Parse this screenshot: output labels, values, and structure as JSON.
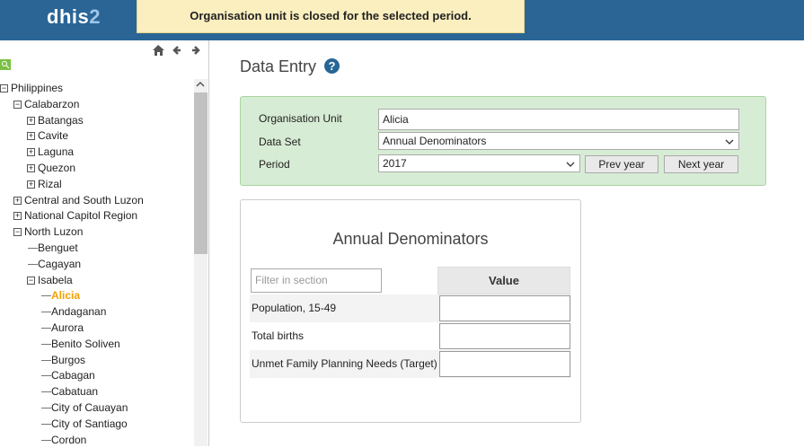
{
  "header": {
    "logo": "dhis",
    "logo_suffix": "2",
    "notification": "Organisation unit is closed for the selected period."
  },
  "tree": [
    {
      "label": "Philippines",
      "children": [
        {
          "label": "Calabarzon",
          "children": [
            {
              "label": "Batangas",
              "collapsed": true
            },
            {
              "label": "Cavite",
              "collapsed": true
            },
            {
              "label": "Laguna",
              "collapsed": true
            },
            {
              "label": "Quezon",
              "collapsed": true
            },
            {
              "label": "Rizal",
              "collapsed": true
            }
          ]
        },
        {
          "label": "Central and South Luzon",
          "collapsed": true
        },
        {
          "label": "National Capitol Region",
          "collapsed": true
        },
        {
          "label": "North Luzon",
          "children": [
            {
              "label": "Benguet"
            },
            {
              "label": "Cagayan"
            },
            {
              "label": "Isabela",
              "children": [
                {
                  "label": "Alicia",
                  "selected": true
                },
                {
                  "label": "Andaganan"
                },
                {
                  "label": "Aurora"
                },
                {
                  "label": "Benito Soliven"
                },
                {
                  "label": "Burgos"
                },
                {
                  "label": "Cabagan"
                },
                {
                  "label": "Cabatuan"
                },
                {
                  "label": "City of Cauayan"
                },
                {
                  "label": "City of Santiago"
                },
                {
                  "label": "Cordon"
                }
              ]
            }
          ]
        }
      ]
    }
  ],
  "page": {
    "title": "Data Entry"
  },
  "form": {
    "rows": [
      {
        "label": "Organisation Unit",
        "value": "Alicia"
      },
      {
        "label": "Data Set",
        "value": "Annual Denominators"
      },
      {
        "label": "Period",
        "value": "2017"
      }
    ],
    "buttons": [
      "Prev year",
      "Next year"
    ]
  },
  "section": {
    "title": "Annual Denominators",
    "filter_placeholder": "Filter in section",
    "column": "Value",
    "rows": [
      "Population, 15-49",
      "Total births",
      "Unmet Family Planning Needs (Target)"
    ]
  }
}
